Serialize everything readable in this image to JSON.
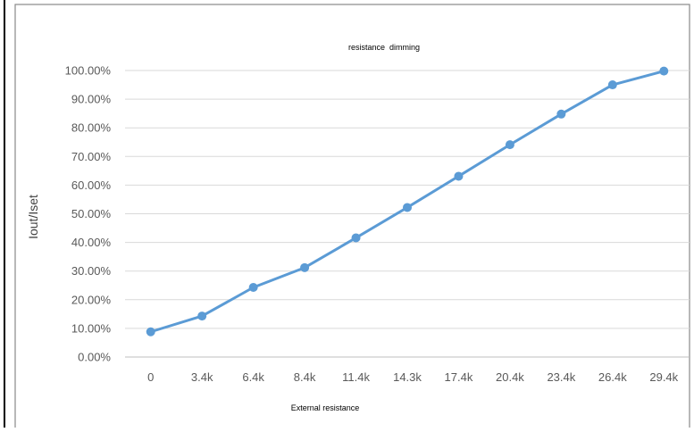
{
  "chart_data": {
    "type": "line",
    "title": "resistance  dimming",
    "xlabel": "External resistance",
    "ylabel": "Iout/Iset",
    "categories": [
      "0",
      "3.4k",
      "6.4k",
      "8.4k",
      "11.4k",
      "14.3k",
      "17.4k",
      "20.4k",
      "23.4k",
      "26.4k",
      "29.4k"
    ],
    "series": [
      {
        "values": [
          8.8,
          14.3,
          24.3,
          31.2,
          41.6,
          52.2,
          63.1,
          74.1,
          84.8,
          95.0,
          99.8
        ],
        "color": "#5b9bd5"
      }
    ],
    "ylim": [
      0,
      100
    ],
    "y_ticks": [
      "0.00%",
      "10.00%",
      "20.00%",
      "30.00%",
      "40.00%",
      "50.00%",
      "60.00%",
      "70.00%",
      "80.00%",
      "90.00%",
      "100.00%"
    ],
    "grid": true,
    "legend": "none"
  }
}
